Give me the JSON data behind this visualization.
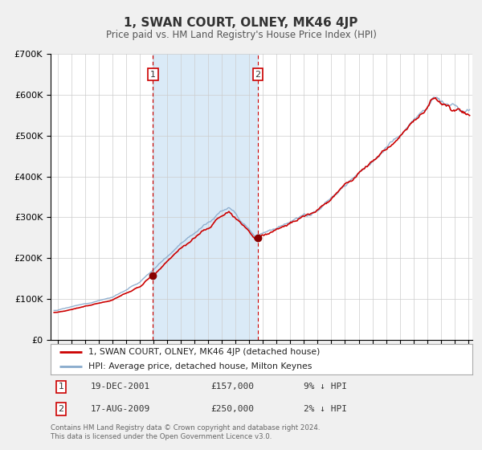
{
  "title": "1, SWAN COURT, OLNEY, MK46 4JP",
  "subtitle": "Price paid vs. HM Land Registry's House Price Index (HPI)",
  "background_color": "#f0f0f0",
  "plot_bg_color": "#ffffff",
  "shaded_region": [
    2001.97,
    2009.63
  ],
  "shaded_color": "#daeaf7",
  "sale1_date": 2001.97,
  "sale1_price": 157000,
  "sale2_date": 2009.63,
  "sale2_price": 250000,
  "ylim": [
    0,
    700000
  ],
  "xlim": [
    1994.5,
    2025.3
  ],
  "yticks": [
    0,
    100000,
    200000,
    300000,
    400000,
    500000,
    600000,
    700000
  ],
  "ytick_labels": [
    "£0",
    "£100K",
    "£200K",
    "£300K",
    "£400K",
    "£500K",
    "£600K",
    "£700K"
  ],
  "xticks": [
    1995,
    1996,
    1997,
    1998,
    1999,
    2000,
    2001,
    2002,
    2003,
    2004,
    2005,
    2006,
    2007,
    2008,
    2009,
    2010,
    2011,
    2012,
    2013,
    2014,
    2015,
    2016,
    2017,
    2018,
    2019,
    2020,
    2021,
    2022,
    2023,
    2024,
    2025
  ],
  "red_line_label": "1, SWAN COURT, OLNEY, MK46 4JP (detached house)",
  "blue_line_label": "HPI: Average price, detached house, Milton Keynes",
  "legend_table": [
    {
      "num": "1",
      "date": "19-DEC-2001",
      "price": "£157,000",
      "hpi": "9% ↓ HPI"
    },
    {
      "num": "2",
      "date": "17-AUG-2009",
      "price": "£250,000",
      "hpi": "2% ↓ HPI"
    }
  ],
  "footer": "Contains HM Land Registry data © Crown copyright and database right 2024.\nThis data is licensed under the Open Government Licence v3.0.",
  "grid_color": "#cccccc",
  "dashed_line_color": "#cc0000",
  "dot_color": "#880000",
  "red_line_color": "#cc0000",
  "blue_line_color": "#88aacc"
}
